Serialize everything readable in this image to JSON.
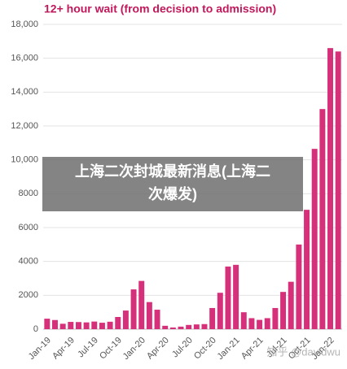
{
  "chart_data": {
    "type": "bar",
    "title": "12+ hour wait (from decision to admission)",
    "categories": [
      "Jan-19",
      null,
      null,
      "Apr-19",
      null,
      null,
      "Jul-19",
      null,
      null,
      "Oct-19",
      null,
      null,
      "Jan-20",
      null,
      null,
      "Apr-20",
      null,
      null,
      "Jul-20",
      null,
      null,
      "Oct-20",
      null,
      null,
      "Jan-21",
      null,
      null,
      "Apr-21",
      null,
      null,
      "Jul-21",
      null,
      null,
      "Oct-21",
      null,
      null,
      "Jan-22",
      null
    ],
    "values": [
      620,
      540,
      320,
      430,
      420,
      400,
      450,
      380,
      440,
      720,
      1100,
      2350,
      2850,
      1600,
      1150,
      200,
      100,
      150,
      250,
      280,
      300,
      1250,
      2150,
      3700,
      3800,
      1000,
      650,
      550,
      650,
      1250,
      2200,
      2800,
      5000,
      7050,
      10650,
      13000,
      16600,
      16400
    ],
    "color": "#d6307a",
    "ylim": [
      0,
      18000
    ],
    "yticks": [
      0,
      2000,
      4000,
      6000,
      8000,
      {
        "value": 10000,
        "label": "10,000"
      },
      {
        "value": 12000,
        "label": "12,000"
      },
      {
        "value": 14000,
        "label": "14,000"
      },
      {
        "value": 16000,
        "label": "16,000"
      },
      {
        "value": 18000,
        "label": "18,000"
      }
    ],
    "grid": true
  },
  "overlay": {
    "lines": [
      "上海二次封城最新消息(上海二",
      "次爆发)"
    ]
  },
  "watermark": "知乎 @davidwu"
}
